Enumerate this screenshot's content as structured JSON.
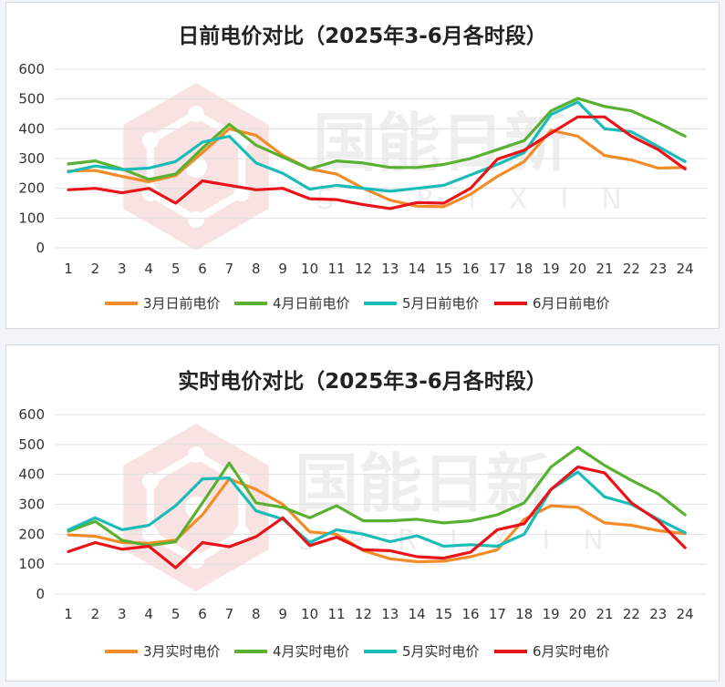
{
  "watermark": {
    "text": "国能日新",
    "subtext": "SPRIXIN"
  },
  "chart_data": [
    {
      "type": "line",
      "title": "日前电价对比（2025年3-6月各时段）",
      "x": [
        1,
        2,
        3,
        4,
        5,
        6,
        7,
        8,
        9,
        10,
        11,
        12,
        13,
        14,
        15,
        16,
        17,
        18,
        19,
        20,
        21,
        22,
        23,
        24
      ],
      "ylim": [
        0,
        600
      ],
      "yticks": [
        0,
        100,
        200,
        300,
        400,
        500,
        600
      ],
      "grid": true,
      "legend_position": "bottom",
      "series": [
        {
          "name": "3月日前电价",
          "color": "#f28c28",
          "values": [
            258,
            260,
            240,
            222,
            243,
            320,
            400,
            378,
            310,
            265,
            248,
            200,
            160,
            140,
            138,
            180,
            240,
            290,
            395,
            375,
            310,
            295,
            268,
            270
          ]
        },
        {
          "name": "4月日前电价",
          "color": "#5ab031",
          "values": [
            282,
            292,
            265,
            230,
            248,
            335,
            415,
            345,
            305,
            265,
            292,
            285,
            270,
            270,
            280,
            300,
            330,
            360,
            460,
            502,
            475,
            460,
            420,
            375
          ]
        },
        {
          "name": "5月日前电价",
          "color": "#1bbcb8",
          "values": [
            255,
            275,
            263,
            268,
            290,
            355,
            375,
            285,
            250,
            197,
            210,
            200,
            190,
            200,
            210,
            245,
            280,
            320,
            448,
            490,
            400,
            390,
            340,
            290
          ]
        },
        {
          "name": "6月日前电价",
          "color": "#e8141a",
          "values": [
            195,
            200,
            185,
            200,
            150,
            225,
            210,
            195,
            200,
            165,
            162,
            145,
            132,
            152,
            150,
            200,
            298,
            328,
            385,
            440,
            440,
            375,
            330,
            265
          ]
        }
      ]
    },
    {
      "type": "line",
      "title": "实时电价对比（2025年3-6月各时段）",
      "x": [
        1,
        2,
        3,
        4,
        5,
        6,
        7,
        8,
        9,
        10,
        11,
        12,
        13,
        14,
        15,
        16,
        17,
        18,
        19,
        20,
        21,
        22,
        23,
        24
      ],
      "ylim": [
        0,
        600
      ],
      "yticks": [
        0,
        100,
        200,
        300,
        400,
        500,
        600
      ],
      "grid": true,
      "legend_position": "bottom",
      "series": [
        {
          "name": "3月实时电价",
          "color": "#f28c28",
          "values": [
            198,
            193,
            172,
            170,
            180,
            265,
            385,
            350,
            300,
            208,
            200,
            145,
            118,
            108,
            110,
            125,
            148,
            250,
            295,
            290,
            238,
            230,
            212,
            202
          ]
        },
        {
          "name": "4月实时电价",
          "color": "#5ab031",
          "values": [
            210,
            243,
            180,
            162,
            175,
            305,
            438,
            305,
            290,
            255,
            295,
            245,
            245,
            250,
            238,
            245,
            265,
            305,
            425,
            490,
            430,
            380,
            335,
            265
          ]
        },
        {
          "name": "5月实时电价",
          "color": "#1bbcb8",
          "values": [
            215,
            255,
            215,
            230,
            295,
            385,
            388,
            278,
            250,
            172,
            215,
            200,
            175,
            195,
            160,
            165,
            160,
            200,
            350,
            408,
            325,
            300,
            250,
            205
          ]
        },
        {
          "name": "6月实时电价",
          "color": "#e8141a",
          "values": [
            142,
            172,
            150,
            160,
            88,
            172,
            158,
            192,
            255,
            162,
            190,
            148,
            145,
            125,
            120,
            140,
            215,
            235,
            350,
            425,
            405,
            305,
            245,
            155
          ]
        }
      ]
    }
  ]
}
